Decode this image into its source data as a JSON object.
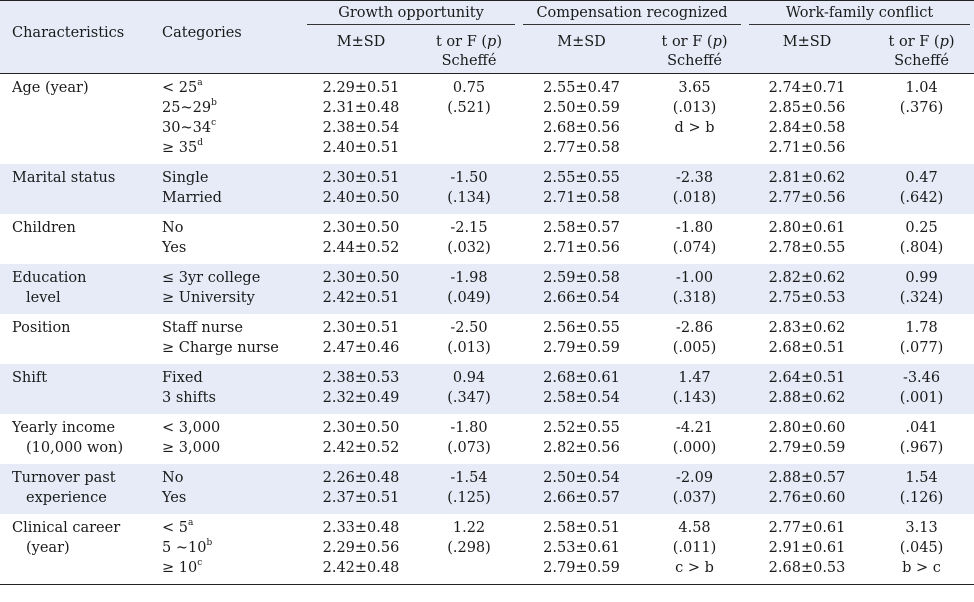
{
  "headers": {
    "characteristics": "Characteristics",
    "categories": "Categories",
    "groups": [
      "Growth opportunity",
      "Compensation recognized",
      "Work-family conflict"
    ],
    "msd": "M±SD",
    "test_line1": "t or F (",
    "test_p": "p",
    "test_line1_end": ")",
    "test_line2": "Scheffé"
  },
  "rows": [
    {
      "char": [
        "Age (year)"
      ],
      "cats": [
        {
          "t": "< 25",
          "s": "a"
        },
        {
          "t": "25~29",
          "s": "b"
        },
        {
          "t": "30~34",
          "s": "c"
        },
        {
          "t": "≥ 35",
          "s": "d"
        }
      ],
      "g1": [
        "2.29±0.51",
        "2.31±0.48",
        "2.38±0.54",
        "2.40±0.51"
      ],
      "t1": [
        "0.75",
        "(.521)"
      ],
      "g2": [
        "2.55±0.47",
        "2.50±0.59",
        "2.68±0.56",
        "2.77±0.58"
      ],
      "t2": [
        "3.65",
        "(.013)",
        "d > b"
      ],
      "g3": [
        "2.74±0.71",
        "2.85±0.56",
        "2.84±0.58",
        "2.71±0.56"
      ],
      "t3": [
        "1.04",
        "(.376)"
      ]
    },
    {
      "char": [
        "Marital status"
      ],
      "cats": [
        {
          "t": "Single"
        },
        {
          "t": "Married"
        }
      ],
      "g1": [
        "2.30±0.51",
        "2.40±0.50"
      ],
      "t1": [
        "-1.50",
        "(.134)"
      ],
      "g2": [
        "2.55±0.55",
        "2.71±0.58"
      ],
      "t2": [
        "-2.38",
        "(.018)"
      ],
      "g3": [
        "2.81±0.62",
        "2.77±0.56"
      ],
      "t3": [
        "0.47",
        "(.642)"
      ]
    },
    {
      "char": [
        "Children"
      ],
      "cats": [
        {
          "t": "No"
        },
        {
          "t": "Yes"
        }
      ],
      "g1": [
        "2.30±0.50",
        "2.44±0.52"
      ],
      "t1": [
        "-2.15",
        "(.032)"
      ],
      "g2": [
        "2.58±0.57",
        "2.71±0.56"
      ],
      "t2": [
        "-1.80",
        "(.074)"
      ],
      "g3": [
        "2.80±0.61",
        "2.78±0.55"
      ],
      "t3": [
        "0.25",
        "(.804)"
      ]
    },
    {
      "char": [
        "Education",
        "level"
      ],
      "cats": [
        {
          "t": "≤ 3yr college"
        },
        {
          "t": "≥ University"
        }
      ],
      "g1": [
        "2.30±0.50",
        "2.42±0.51"
      ],
      "t1": [
        "-1.98",
        "(.049)"
      ],
      "g2": [
        "2.59±0.58",
        "2.66±0.54"
      ],
      "t2": [
        "-1.00",
        "(.318)"
      ],
      "g3": [
        "2.82±0.62",
        "2.75±0.53"
      ],
      "t3": [
        "0.99",
        "(.324)"
      ]
    },
    {
      "char": [
        "Position"
      ],
      "cats": [
        {
          "t": "Staff nurse"
        },
        {
          "t": "≥ Charge nurse"
        }
      ],
      "g1": [
        "2.30±0.51",
        "2.47±0.46"
      ],
      "t1": [
        "-2.50",
        "(.013)"
      ],
      "g2": [
        "2.56±0.55",
        "2.79±0.59"
      ],
      "t2": [
        "-2.86",
        "(.005)"
      ],
      "g3": [
        "2.83±0.62",
        "2.68±0.51"
      ],
      "t3": [
        "1.78",
        "(.077)"
      ]
    },
    {
      "char": [
        "Shift"
      ],
      "cats": [
        {
          "t": "Fixed"
        },
        {
          "t": "3 shifts"
        }
      ],
      "g1": [
        "2.38±0.53",
        "2.32±0.49"
      ],
      "t1": [
        "0.94",
        "(.347)"
      ],
      "g2": [
        "2.68±0.61",
        "2.58±0.54"
      ],
      "t2": [
        "1.47",
        "(.143)"
      ],
      "g3": [
        "2.64±0.51",
        "2.88±0.62"
      ],
      "t3": [
        "-3.46",
        "(.001)"
      ]
    },
    {
      "char": [
        "Yearly income",
        "(10,000 won)"
      ],
      "cats": [
        {
          "t": "< 3,000"
        },
        {
          "t": "≥ 3,000"
        }
      ],
      "g1": [
        "2.30±0.50",
        "2.42±0.52"
      ],
      "t1": [
        "-1.80",
        "(.073)"
      ],
      "g2": [
        "2.52±0.55",
        "2.82±0.56"
      ],
      "t2": [
        "-4.21",
        "(.000)"
      ],
      "g3": [
        "2.80±0.60",
        "2.79±0.59"
      ],
      "t3": [
        ".041",
        "(.967)"
      ]
    },
    {
      "char": [
        "Turnover past",
        "experience"
      ],
      "cats": [
        {
          "t": "No"
        },
        {
          "t": "Yes"
        }
      ],
      "g1": [
        "2.26±0.48",
        "2.37±0.51"
      ],
      "t1": [
        "-1.54",
        "(.125)"
      ],
      "g2": [
        "2.50±0.54",
        "2.66±0.57"
      ],
      "t2": [
        "-2.09",
        "(.037)"
      ],
      "g3": [
        "2.88±0.57",
        "2.76±0.60"
      ],
      "t3": [
        "1.54",
        "(.126)"
      ]
    },
    {
      "char": [
        "Clinical career",
        "(year)"
      ],
      "cats": [
        {
          "t": "< 5",
          "s": "a"
        },
        {
          "t": "5 ~10",
          "s": "b"
        },
        {
          "t": "≥ 10",
          "s": "c"
        }
      ],
      "g1": [
        "2.33±0.48",
        "2.29±0.56",
        "2.42±0.48"
      ],
      "t1": [
        "1.22",
        "(.298)"
      ],
      "g2": [
        "2.58±0.51",
        "2.53±0.61",
        "2.79±0.59"
      ],
      "t2": [
        "4.58",
        "(.011)",
        "c > b"
      ],
      "g3": [
        "2.77±0.61",
        "2.91±0.61",
        "2.68±0.53"
      ],
      "t3": [
        "3.13",
        "(.045)",
        "b > c"
      ]
    }
  ]
}
